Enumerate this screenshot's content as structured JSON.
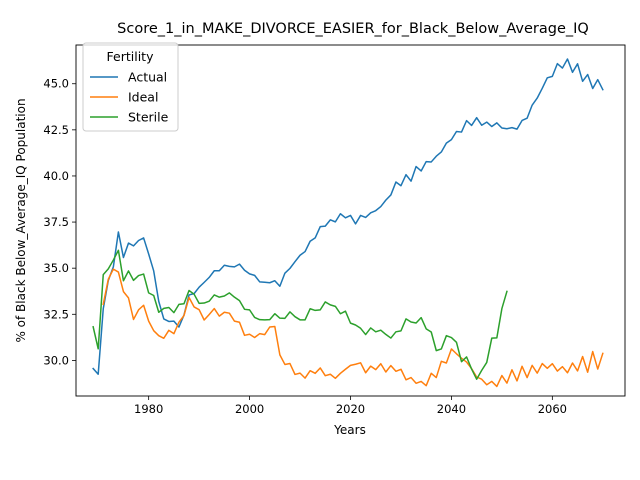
{
  "chart_data": {
    "type": "line",
    "title": "Score_1_in_MAKE_DIVORCE_EASIER_for_Black_Below_Average_IQ",
    "xlabel": "Years",
    "ylabel": "% of Black Below_Average_IQ Population",
    "xlim": [
      1965.6,
      2074.4
    ],
    "ylim": [
      28.07,
      47.1
    ],
    "xticks": [
      1980,
      2000,
      2020,
      2040,
      2060
    ],
    "yticks": [
      30.0,
      32.5,
      35.0,
      37.5,
      40.0,
      42.5,
      45.0
    ],
    "xtick_labels": [
      "1980",
      "2000",
      "2020",
      "2040",
      "2060"
    ],
    "ytick_labels": [
      "30.0",
      "32.5",
      "35.0",
      "37.5",
      "40.0",
      "42.5",
      "45.0"
    ],
    "grid": false,
    "legend": {
      "title": "Fertility",
      "placement": "top-left"
    },
    "series": [
      {
        "name": "Actual",
        "color": "#1f77b4",
        "x": [
          1969,
          1970,
          1971,
          1972,
          1973,
          1974,
          1975,
          1976,
          1977,
          1978,
          1979,
          1980,
          1981,
          1982,
          1983,
          1984,
          1985,
          1986,
          1987,
          1988,
          1989,
          1990,
          1991,
          1992,
          1993,
          1994,
          1995,
          1996,
          1997,
          1998,
          1999,
          2000,
          2001,
          2002,
          2003,
          2004,
          2005,
          2006,
          2007,
          2008,
          2009,
          2010,
          2011,
          2012,
          2013,
          2014,
          2015,
          2016,
          2017,
          2018,
          2019,
          2020,
          2021,
          2022,
          2023,
          2024,
          2025,
          2026,
          2027,
          2028,
          2029,
          2030,
          2031,
          2032,
          2033,
          2034,
          2035,
          2036,
          2037,
          2038,
          2039,
          2040,
          2041,
          2042,
          2043,
          2044,
          2045,
          2046,
          2047,
          2048,
          2049,
          2050,
          2051,
          2052,
          2053,
          2054,
          2055,
          2056,
          2057,
          2058,
          2059,
          2060,
          2061,
          2062,
          2063,
          2064,
          2065,
          2066,
          2067,
          2068,
          2069,
          2070
        ],
        "values": [
          29.56,
          29.25,
          32.8,
          34.33,
          35.07,
          36.96,
          35.58,
          36.36,
          36.21,
          36.5,
          36.64,
          35.77,
          34.85,
          33.2,
          32.25,
          32.11,
          32.13,
          31.81,
          32.46,
          33.55,
          33.62,
          33.97,
          34.23,
          34.5,
          34.86,
          34.86,
          35.16,
          35.1,
          35.07,
          35.22,
          34.89,
          34.69,
          34.61,
          34.26,
          34.24,
          34.21,
          34.32,
          34.02,
          34.73,
          34.99,
          35.35,
          35.7,
          35.9,
          36.46,
          36.64,
          37.25,
          37.28,
          37.62,
          37.51,
          37.95,
          37.73,
          37.86,
          37.4,
          37.86,
          37.75,
          38.0,
          38.12,
          38.34,
          38.69,
          38.97,
          39.67,
          39.47,
          40.07,
          39.72,
          40.51,
          40.27,
          40.78,
          40.76,
          41.07,
          41.3,
          41.78,
          41.97,
          42.41,
          42.38,
          43.0,
          42.74,
          43.16,
          42.75,
          42.92,
          42.68,
          42.88,
          42.6,
          42.56,
          42.62,
          42.54,
          43.01,
          43.13,
          43.84,
          44.22,
          44.75,
          45.32,
          45.4,
          46.09,
          45.85,
          46.34,
          45.62,
          46.08,
          45.13,
          45.5,
          44.74,
          45.22,
          44.68
        ]
      },
      {
        "name": "Ideal",
        "color": "#ff7f0e",
        "x": [
          1971,
          1972,
          1973,
          1974,
          1975,
          1976,
          1977,
          1978,
          1979,
          1980,
          1981,
          1982,
          1983,
          1984,
          1985,
          1986,
          1987,
          1988,
          1989,
          1990,
          1991,
          1992,
          1993,
          1994,
          1995,
          1996,
          1997,
          1998,
          1999,
          2000,
          2001,
          2002,
          2003,
          2004,
          2005,
          2006,
          2007,
          2008,
          2009,
          2010,
          2011,
          2012,
          2013,
          2014,
          2015,
          2016,
          2017,
          2018,
          2019,
          2020,
          2021,
          2022,
          2023,
          2024,
          2025,
          2026,
          2027,
          2028,
          2029,
          2030,
          2031,
          2032,
          2033,
          2034,
          2035,
          2036,
          2037,
          2038,
          2039,
          2040,
          2041,
          2042,
          2043,
          2044,
          2045,
          2046,
          2047,
          2048,
          2049,
          2050,
          2051,
          2052,
          2053,
          2054,
          2055,
          2056,
          2057,
          2058,
          2059,
          2060,
          2061,
          2062,
          2063,
          2064,
          2065,
          2066,
          2067,
          2068,
          2069,
          2070
        ],
        "values": [
          33.04,
          34.4,
          34.95,
          34.79,
          33.73,
          33.39,
          32.22,
          32.74,
          32.99,
          32.13,
          31.61,
          31.34,
          31.2,
          31.63,
          31.45,
          32.07,
          32.43,
          33.41,
          32.9,
          32.75,
          32.19,
          32.49,
          32.81,
          32.4,
          32.61,
          32.56,
          32.13,
          32.07,
          31.36,
          31.42,
          31.24,
          31.45,
          31.4,
          31.81,
          31.84,
          30.3,
          29.78,
          29.83,
          29.24,
          29.31,
          29.04,
          29.44,
          29.3,
          29.59,
          29.17,
          29.25,
          29.03,
          29.3,
          29.52,
          29.73,
          29.79,
          29.87,
          29.33,
          29.69,
          29.5,
          29.82,
          29.37,
          29.72,
          29.41,
          29.52,
          28.95,
          29.07,
          28.76,
          28.86,
          28.63,
          29.3,
          29.07,
          29.95,
          29.86,
          30.62,
          30.36,
          30.12,
          29.91,
          29.55,
          29.1,
          28.98,
          28.68,
          28.86,
          28.59,
          29.18,
          28.77,
          29.49,
          28.89,
          29.68,
          29.07,
          29.73,
          29.31,
          29.83,
          29.57,
          29.82,
          29.42,
          29.66,
          29.33,
          29.86,
          29.43,
          30.21,
          29.36,
          30.48,
          29.53,
          30.38
        ]
      },
      {
        "name": "Sterile",
        "color": "#2ca02c",
        "x": [
          1969,
          1970,
          1971,
          1972,
          1973,
          1974,
          1975,
          1976,
          1977,
          1978,
          1979,
          1980,
          1981,
          1982,
          1983,
          1984,
          1985,
          1986,
          1987,
          1988,
          1989,
          1990,
          1991,
          1992,
          1993,
          1994,
          1995,
          1996,
          1997,
          1998,
          1999,
          2000,
          2001,
          2002,
          2003,
          2004,
          2005,
          2006,
          2007,
          2008,
          2009,
          2010,
          2011,
          2012,
          2013,
          2014,
          2015,
          2016,
          2017,
          2018,
          2019,
          2020,
          2021,
          2022,
          2023,
          2024,
          2025,
          2026,
          2027,
          2028,
          2029,
          2030,
          2031,
          2032,
          2033,
          2034,
          2035,
          2036,
          2037,
          2038,
          2039,
          2040,
          2041,
          2042,
          2043,
          2044,
          2045,
          2046,
          2047,
          2048,
          2049,
          2050,
          2051
        ],
        "values": [
          31.82,
          30.63,
          34.65,
          34.96,
          35.44,
          35.97,
          34.32,
          34.85,
          34.34,
          34.6,
          34.68,
          33.66,
          33.52,
          32.61,
          32.82,
          32.87,
          32.59,
          33.04,
          33.07,
          33.79,
          33.59,
          33.09,
          33.11,
          33.21,
          33.55,
          33.43,
          33.49,
          33.66,
          33.43,
          33.24,
          32.77,
          32.74,
          32.33,
          32.21,
          32.2,
          32.21,
          32.53,
          32.29,
          32.28,
          32.63,
          32.37,
          32.2,
          32.2,
          32.8,
          32.71,
          32.74,
          33.17,
          33.01,
          32.93,
          32.53,
          32.67,
          32.02,
          31.92,
          31.74,
          31.4,
          31.76,
          31.55,
          31.64,
          31.41,
          31.21,
          31.55,
          31.6,
          32.25,
          32.08,
          32.03,
          32.32,
          31.71,
          31.54,
          30.53,
          30.62,
          31.34,
          31.24,
          30.98,
          29.93,
          30.19,
          29.53,
          28.98,
          29.46,
          29.89,
          31.21,
          31.22,
          32.81,
          33.74
        ]
      }
    ]
  }
}
